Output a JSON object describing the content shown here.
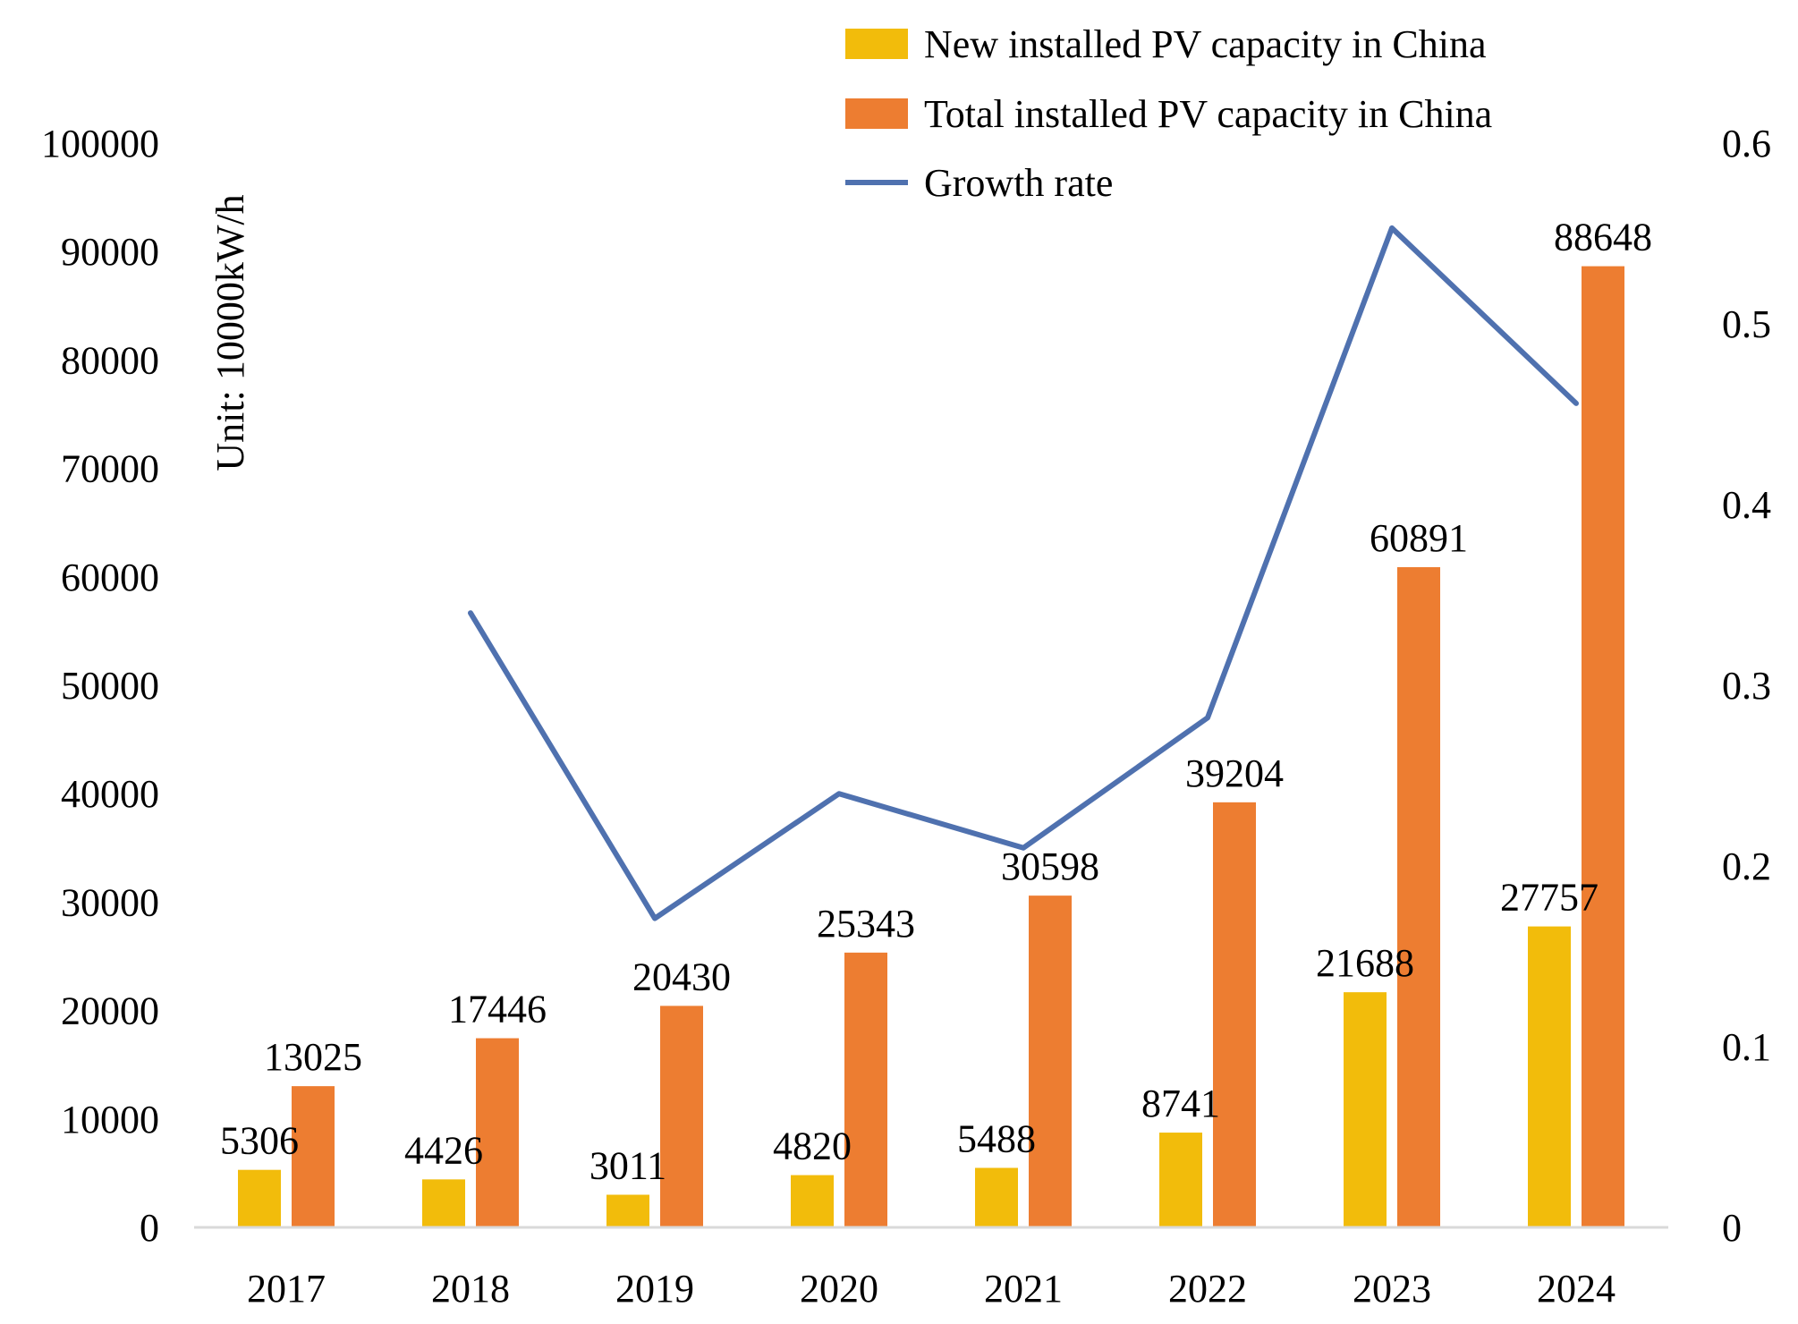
{
  "chart_data": {
    "type": "bar",
    "categories": [
      "2017",
      "2018",
      "2019",
      "2020",
      "2021",
      "2022",
      "2023",
      "2024"
    ],
    "series": [
      {
        "name": "New installed PV capacity in China",
        "type": "bar",
        "axis": "left",
        "color": "#F2BC0B",
        "values": [
          5306,
          4426,
          3011,
          4820,
          5488,
          8741,
          21688,
          27757
        ],
        "labels": [
          "5306",
          "4426",
          "3011",
          "4820",
          "5488",
          "8741",
          "21688",
          "27757"
        ]
      },
      {
        "name": "Total installed PV capacity in China",
        "type": "bar",
        "axis": "left",
        "color": "#ED7D31",
        "values": [
          13025,
          17446,
          20430,
          25343,
          30598,
          39204,
          60891,
          88648
        ],
        "labels": [
          "13025",
          "17446",
          "20430",
          "25343",
          "30598",
          "39204",
          "60891",
          "88648"
        ]
      },
      {
        "name": "Growth rate",
        "type": "line",
        "axis": "right",
        "color": "#4F71AF",
        "values": [
          null,
          0.34,
          0.171,
          0.24,
          0.21,
          0.282,
          0.553,
          0.456
        ]
      }
    ],
    "ylabel": "Unit: 10000kW/h",
    "xlabel": "",
    "ylim": [
      0,
      100000
    ],
    "y_ticks": [
      "0",
      "10000",
      "20000",
      "30000",
      "40000",
      "50000",
      "60000",
      "70000",
      "80000",
      "90000",
      "100000"
    ],
    "y2lim": [
      0,
      0.6
    ],
    "y2_ticks": [
      "0",
      "0.1",
      "0.2",
      "0.3",
      "0.4",
      "0.5",
      "0.6"
    ],
    "grid": false,
    "legend_position": "top-center",
    "baseline_color": "#D9D9D9"
  }
}
